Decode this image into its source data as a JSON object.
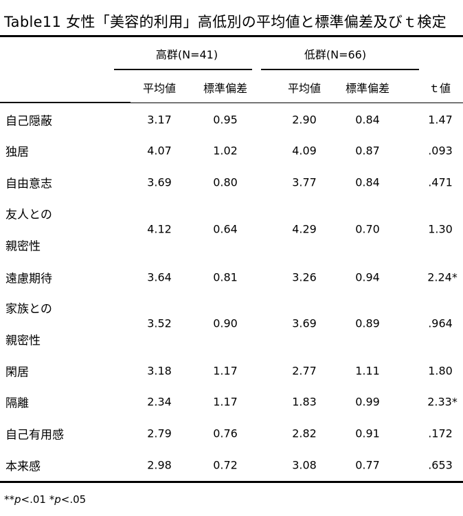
{
  "title": "Table11 女性「美容的利用」高低別の平均値と標準偏差及びｔ検定",
  "groups": {
    "high": "高群(N=41)",
    "low": "低群(N=66)"
  },
  "columns": {
    "high_mean": "平均値",
    "high_sd": "標準偏差",
    "low_mean": "平均値",
    "low_sd": "標準偏差",
    "t": "ｔ値"
  },
  "rows": [
    {
      "label": "自己隠蔽",
      "high_mean": "3.17",
      "high_sd": "0.95",
      "low_mean": "2.90",
      "low_sd": "0.84",
      "t": "1.47"
    },
    {
      "label": "独居",
      "high_mean": "4.07",
      "high_sd": "1.02",
      "low_mean": "4.09",
      "low_sd": "0.87",
      "t": ".093"
    },
    {
      "label": "自由意志",
      "high_mean": "3.69",
      "high_sd": "0.80",
      "low_mean": "3.77",
      "low_sd": "0.84",
      "t": ".471"
    },
    {
      "label": "友人との",
      "label2": "親密性",
      "high_mean": "4.12",
      "high_sd": "0.64",
      "low_mean": "4.29",
      "low_sd": "0.70",
      "t": "1.30"
    },
    {
      "label": "遠慮期待",
      "high_mean": "3.64",
      "high_sd": "0.81",
      "low_mean": "3.26",
      "low_sd": "0.94",
      "t": "2.24*"
    },
    {
      "label": "家族との",
      "label2": "親密性",
      "high_mean": "3.52",
      "high_sd": "0.90",
      "low_mean": "3.69",
      "low_sd": "0.89",
      "t": ".964"
    },
    {
      "label": "閑居",
      "high_mean": "3.18",
      "high_sd": "1.17",
      "low_mean": "2.77",
      "low_sd": "1.11",
      "t": "1.80"
    },
    {
      "label": "隔離",
      "high_mean": "2.34",
      "high_sd": "1.17",
      "low_mean": "1.83",
      "low_sd": "0.99",
      "t": "2.33*"
    },
    {
      "label": "自己有用感",
      "high_mean": "2.79",
      "high_sd": "0.76",
      "low_mean": "2.82",
      "low_sd": "0.91",
      "t": ".172"
    },
    {
      "label": "本来感",
      "high_mean": "2.98",
      "high_sd": "0.72",
      "low_mean": "3.08",
      "low_sd": "0.77",
      "t": ".653"
    }
  ],
  "footnote": {
    "part1": "**",
    "p1": "p",
    "part2": "<.01 *",
    "p2": "p",
    "part3": "<.05"
  }
}
